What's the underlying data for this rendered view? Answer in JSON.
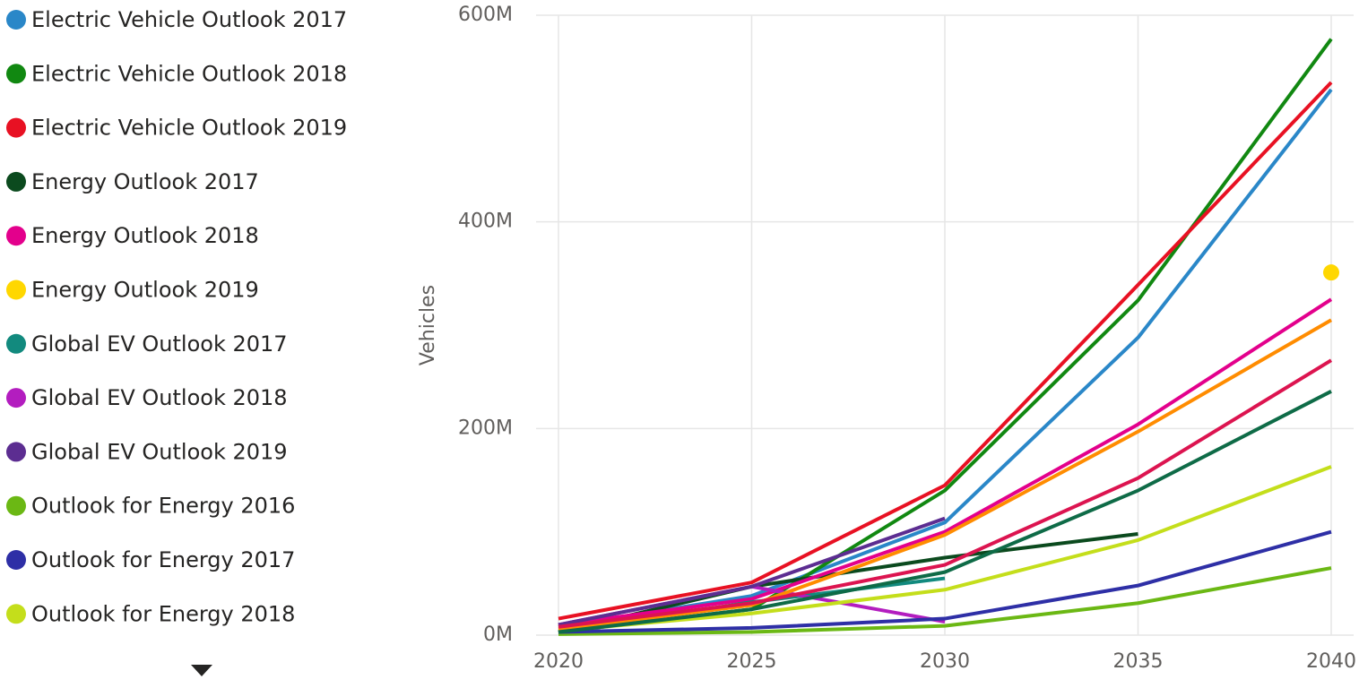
{
  "chart_data": {
    "type": "line",
    "x": [
      2020,
      2025,
      2030,
      2035,
      2040
    ],
    "xlim": [
      2020,
      2040
    ],
    "xticks": [
      2020,
      2025,
      2030,
      2035,
      2040
    ],
    "ylim": [
      0,
      600
    ],
    "yticks": [
      {
        "value": 0,
        "label": "0M"
      },
      {
        "value": 200,
        "label": "200M"
      },
      {
        "value": 400,
        "label": "400M"
      },
      {
        "value": 600,
        "label": "600M"
      }
    ],
    "y_label": "Vehicles",
    "grid": true,
    "legend": "left",
    "series": [
      {
        "name": "Electric Vehicle Outlook 2017",
        "color": "#2a87c8",
        "values": [
          8,
          38,
          109,
          288,
          528
        ]
      },
      {
        "name": "Electric Vehicle Outlook 2018",
        "color": "#118811",
        "values": [
          3,
          25,
          140,
          324,
          577
        ]
      },
      {
        "name": "Electric Vehicle Outlook 2019",
        "color": "#e81123",
        "values": [
          16,
          51,
          145,
          339,
          535
        ]
      },
      {
        "name": "Energy Outlook 2017",
        "color": "#0b4a1e",
        "values": [
          3,
          47,
          75,
          98,
          null
        ]
      },
      {
        "name": "Energy Outlook 2018",
        "color": "#e3008c",
        "values": [
          10,
          35,
          100,
          204,
          325
        ]
      },
      {
        "name": "Energy Outlook 2019",
        "color": "#ffd700",
        "values": [
          null,
          null,
          null,
          null,
          351
        ]
      },
      {
        "name": "Global EV Outlook 2017",
        "color": "#128a7e",
        "values": [
          3,
          32,
          55,
          null,
          null
        ]
      },
      {
        "name": "Global EV Outlook 2018",
        "color": "#b31dbf",
        "values": [
          10,
          47,
          13,
          null,
          null
        ]
      },
      {
        "name": "Global EV Outlook 2019",
        "color": "#5c2d91",
        "values": [
          10,
          47,
          113,
          null,
          null
        ]
      },
      {
        "name": "Outlook for Energy 2016",
        "color": "#6bb814",
        "values": [
          1,
          3,
          9,
          31,
          65
        ]
      },
      {
        "name": "Outlook for Energy 2017",
        "color": "#2e2fa6",
        "values": [
          3,
          7,
          16,
          48,
          100
        ]
      },
      {
        "name": "Outlook for Energy 2018",
        "color": "#c4de1b",
        "values": [
          4,
          21,
          44,
          92,
          163
        ]
      },
      {
        "color": "#ff8c00",
        "values": [
          6,
          29,
          97,
          197,
          305
        ]
      },
      {
        "color": "#dc1450",
        "values": [
          8,
          31,
          68,
          152,
          266
        ]
      },
      {
        "color": "#0e6b47",
        "values": [
          3,
          25,
          61,
          140,
          236
        ]
      }
    ]
  }
}
